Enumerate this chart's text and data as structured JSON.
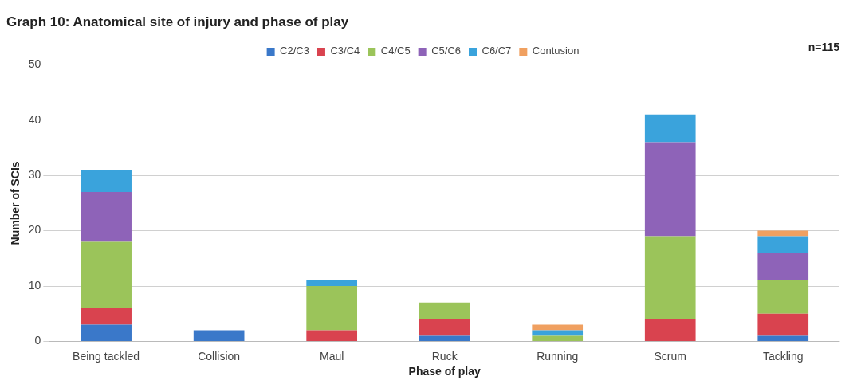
{
  "chart_data": {
    "type": "bar",
    "title": "Graph 10: Anatomical site of injury and phase of play",
    "xlabel": "Phase of play",
    "ylabel": "Number of SCIs",
    "annotations": [
      "n=115"
    ],
    "categories": [
      "Being tackled",
      "Collision",
      "Maul",
      "Ruck",
      "Running",
      "Scrum",
      "Tackling"
    ],
    "stacked": true,
    "ylim": [
      0,
      50
    ],
    "yticks": [
      0,
      10,
      20,
      30,
      40,
      50
    ],
    "grid": "y",
    "legend": "top",
    "series": [
      {
        "name": "C2/C3",
        "color": "#3a78c9",
        "values": [
          3,
          2,
          0,
          1,
          0,
          0,
          1
        ]
      },
      {
        "name": "C3/C4",
        "color": "#d9434f",
        "values": [
          3,
          0,
          2,
          3,
          0,
          4,
          4
        ]
      },
      {
        "name": "C4/C5",
        "color": "#9bc45a",
        "values": [
          12,
          0,
          8,
          3,
          1,
          15,
          6
        ]
      },
      {
        "name": "C5/C6",
        "color": "#8e63b8",
        "values": [
          9,
          0,
          0,
          0,
          0,
          17,
          5
        ]
      },
      {
        "name": "C6/C7",
        "color": "#3aa3dc",
        "values": [
          4,
          0,
          1,
          0,
          1,
          5,
          3
        ]
      },
      {
        "name": "Contusion",
        "color": "#f0a060",
        "values": [
          0,
          0,
          0,
          0,
          1,
          0,
          1
        ]
      }
    ]
  }
}
